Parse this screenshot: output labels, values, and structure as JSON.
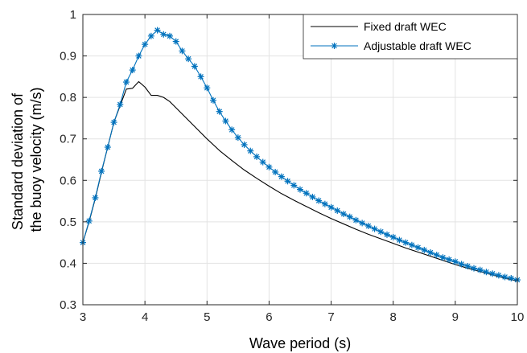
{
  "chart_data": {
    "type": "line",
    "xlabel": "Wave period (s)",
    "ylabel_lines": [
      "Standard deviation of",
      "the buoy velocity (m/s)"
    ],
    "xlim": [
      3,
      10
    ],
    "ylim": [
      0.3,
      1.0
    ],
    "x_ticks": [
      "3",
      "4",
      "5",
      "6",
      "7",
      "8",
      "9",
      "10"
    ],
    "y_ticks": [
      "0.3",
      "0.4",
      "0.5",
      "0.6",
      "0.7",
      "0.8",
      "0.9",
      "1"
    ],
    "grid": true,
    "legend_position": "top-right",
    "series": [
      {
        "name": "Fixed draft WEC",
        "color": "#000000",
        "marker": "none",
        "x": [
          3.0,
          3.1,
          3.2,
          3.3,
          3.4,
          3.5,
          3.6,
          3.7,
          3.8,
          3.9,
          4.0,
          4.1,
          4.2,
          4.3,
          4.4,
          4.5,
          4.6,
          4.7,
          4.8,
          4.9,
          5.0,
          5.2,
          5.4,
          5.6,
          5.8,
          6.0,
          6.2,
          6.4,
          6.6,
          6.8,
          7.0,
          7.2,
          7.4,
          7.6,
          7.8,
          8.0,
          8.2,
          8.4,
          8.6,
          8.8,
          9.0,
          9.2,
          9.4,
          9.6,
          9.8,
          10.0
        ],
        "y": [
          0.45,
          0.5,
          0.556,
          0.62,
          0.68,
          0.74,
          0.78,
          0.82,
          0.822,
          0.838,
          0.825,
          0.805,
          0.805,
          0.8,
          0.79,
          0.775,
          0.76,
          0.745,
          0.73,
          0.715,
          0.7,
          0.672,
          0.648,
          0.625,
          0.605,
          0.586,
          0.568,
          0.552,
          0.537,
          0.522,
          0.508,
          0.495,
          0.482,
          0.47,
          0.459,
          0.448,
          0.437,
          0.427,
          0.417,
          0.407,
          0.397,
          0.388,
          0.38,
          0.372,
          0.364,
          0.357
        ]
      },
      {
        "name": "Adjustable draft WEC",
        "color": "#0072BD",
        "marker": "asterisk",
        "x": [
          3.0,
          3.1,
          3.2,
          3.3,
          3.4,
          3.5,
          3.6,
          3.7,
          3.8,
          3.9,
          4.0,
          4.1,
          4.2,
          4.3,
          4.4,
          4.5,
          4.6,
          4.7,
          4.8,
          4.9,
          5.0,
          5.1,
          5.2,
          5.3,
          5.4,
          5.5,
          5.6,
          5.7,
          5.8,
          5.9,
          6.0,
          6.1,
          6.2,
          6.3,
          6.4,
          6.5,
          6.6,
          6.7,
          6.8,
          6.9,
          7.0,
          7.1,
          7.2,
          7.3,
          7.4,
          7.5,
          7.6,
          7.7,
          7.8,
          7.9,
          8.0,
          8.1,
          8.2,
          8.3,
          8.4,
          8.5,
          8.6,
          8.7,
          8.8,
          8.9,
          9.0,
          9.1,
          9.2,
          9.3,
          9.4,
          9.5,
          9.6,
          9.7,
          9.8,
          9.9,
          10.0
        ],
        "y": [
          0.45,
          0.502,
          0.558,
          0.622,
          0.68,
          0.74,
          0.783,
          0.837,
          0.866,
          0.9,
          0.928,
          0.948,
          0.962,
          0.952,
          0.948,
          0.935,
          0.912,
          0.893,
          0.875,
          0.85,
          0.823,
          0.793,
          0.766,
          0.743,
          0.722,
          0.703,
          0.686,
          0.671,
          0.657,
          0.644,
          0.632,
          0.62,
          0.609,
          0.598,
          0.588,
          0.578,
          0.569,
          0.56,
          0.551,
          0.543,
          0.535,
          0.527,
          0.519,
          0.512,
          0.504,
          0.497,
          0.49,
          0.483,
          0.476,
          0.469,
          0.463,
          0.456,
          0.45,
          0.444,
          0.438,
          0.432,
          0.426,
          0.42,
          0.414,
          0.409,
          0.404,
          0.398,
          0.393,
          0.388,
          0.384,
          0.379,
          0.375,
          0.371,
          0.367,
          0.364,
          0.36
        ]
      }
    ]
  }
}
